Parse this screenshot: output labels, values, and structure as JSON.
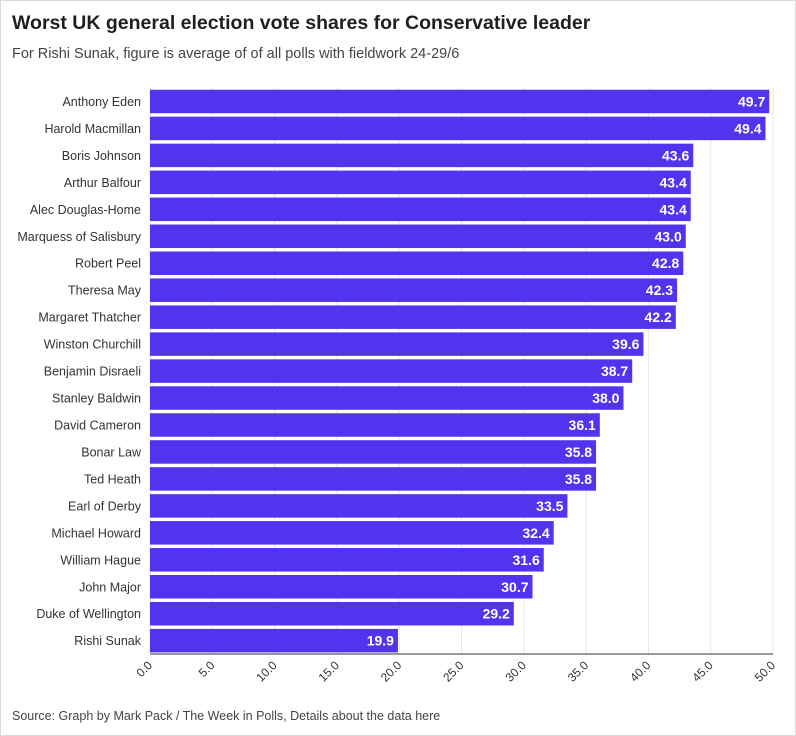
{
  "title": "Worst UK general election vote shares for Conservative leader",
  "subtitle": "For Rishi Sunak, figure is average of of all polls with fieldwork 24-29/6",
  "source": "Source: Graph by Mark Pack / The Week in Polls, Details about the data here",
  "colors": {
    "bar": "#5333ed",
    "grid": "#e6e6e6",
    "axis": "#333333"
  },
  "chart_data": {
    "type": "bar",
    "orientation": "horizontal",
    "title": "Worst UK general election vote shares for Conservative leader",
    "xlabel": "",
    "ylabel": "",
    "xlim": [
      0,
      50
    ],
    "x_ticks": [
      "0.0",
      "5.0",
      "10.0",
      "15.0",
      "20.0",
      "25.0",
      "30.0",
      "35.0",
      "40.0",
      "45.0",
      "50.0"
    ],
    "grid": true,
    "categories": [
      "Anthony Eden",
      "Harold Macmillan",
      "Boris Johnson",
      "Arthur Balfour",
      "Alec Douglas-Home",
      "Marquess of Salisbury",
      "Robert Peel",
      "Theresa May",
      "Margaret Thatcher",
      "Winston Churchill",
      "Benjamin Disraeli",
      "Stanley Baldwin",
      "David Cameron",
      "Bonar Law",
      "Ted Heath",
      "Earl of Derby",
      "Michael Howard",
      "William Hague",
      "John Major",
      "Duke of Wellington",
      "Rishi Sunak"
    ],
    "values": [
      49.7,
      49.4,
      43.6,
      43.4,
      43.4,
      43.0,
      42.8,
      42.3,
      42.2,
      39.6,
      38.7,
      38.0,
      36.1,
      35.8,
      35.8,
      33.5,
      32.4,
      31.6,
      30.7,
      29.2,
      19.9
    ],
    "value_labels": [
      "49.7",
      "49.4",
      "43.6",
      "43.4",
      "43.4",
      "43.0",
      "42.8",
      "42.3",
      "42.2",
      "39.6",
      "38.7",
      "38.0",
      "36.1",
      "35.8",
      "35.8",
      "33.5",
      "32.4",
      "31.6",
      "30.7",
      "29.2",
      "19.9"
    ]
  }
}
